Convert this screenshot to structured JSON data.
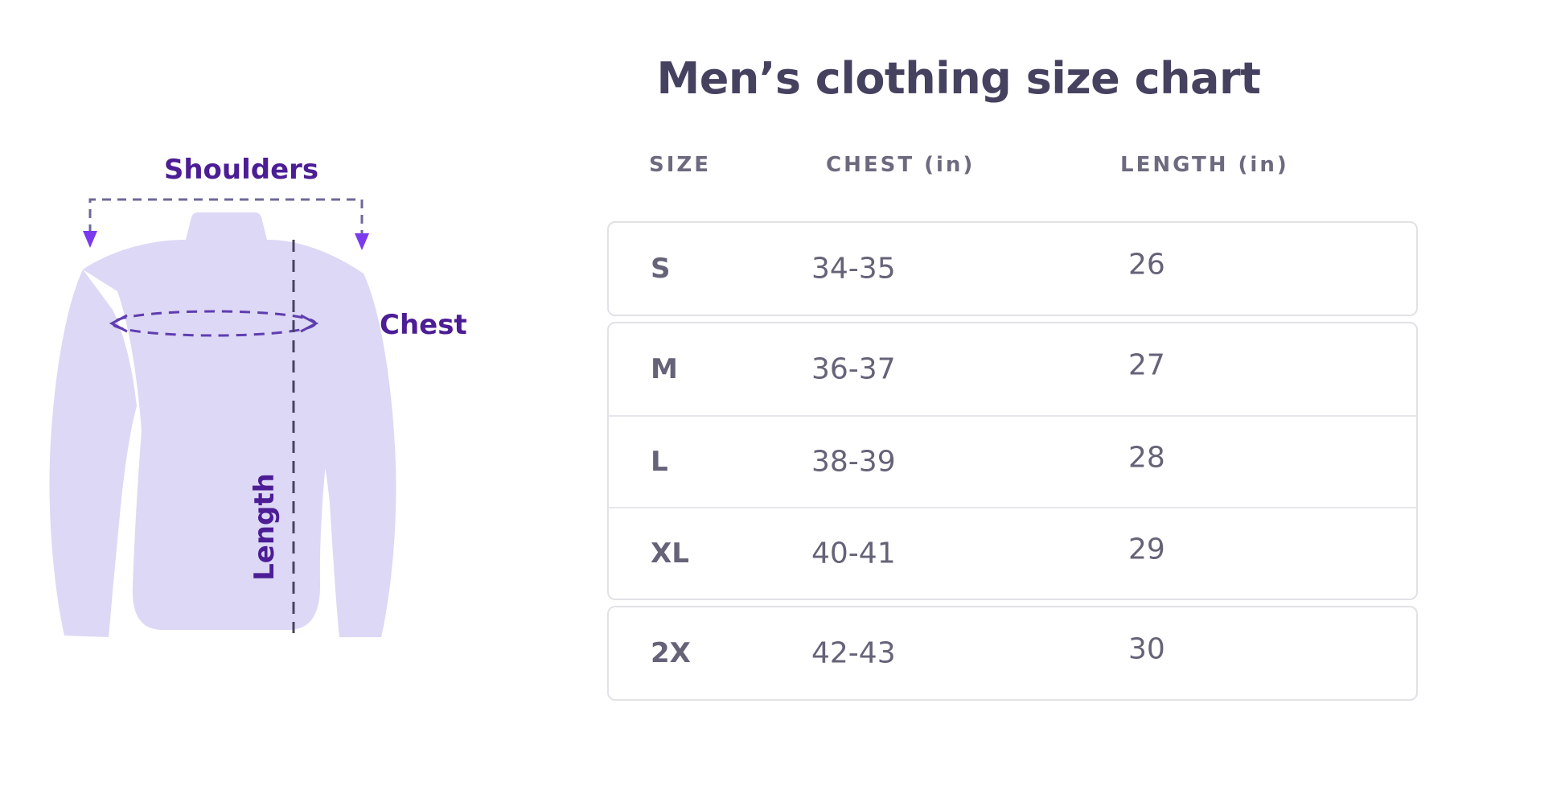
{
  "chart_data": {
    "type": "table",
    "title": "Men’s clothing size chart",
    "columns": [
      "SIZE",
      "CHEST (in)",
      "LENGTH (in)"
    ],
    "rows": [
      [
        "S",
        "34-35",
        "26"
      ],
      [
        "M",
        "36-37",
        "27"
      ],
      [
        "L",
        "38-39",
        "28"
      ],
      [
        "XL",
        "40-41",
        "29"
      ],
      [
        "2X",
        "42-43",
        "30"
      ]
    ]
  },
  "diagram": {
    "shoulders_label": "Shoulders",
    "chest_label": "Chest",
    "length_label": "Length",
    "colors": {
      "shirt_fill": "#dcd8f5",
      "label_text": "#4c1d95",
      "arrowhead": "#7c3aed",
      "bracket_dash": "#6c6898",
      "ellipse_dash": "#5f3db0",
      "length_dash": "#47425f"
    }
  }
}
